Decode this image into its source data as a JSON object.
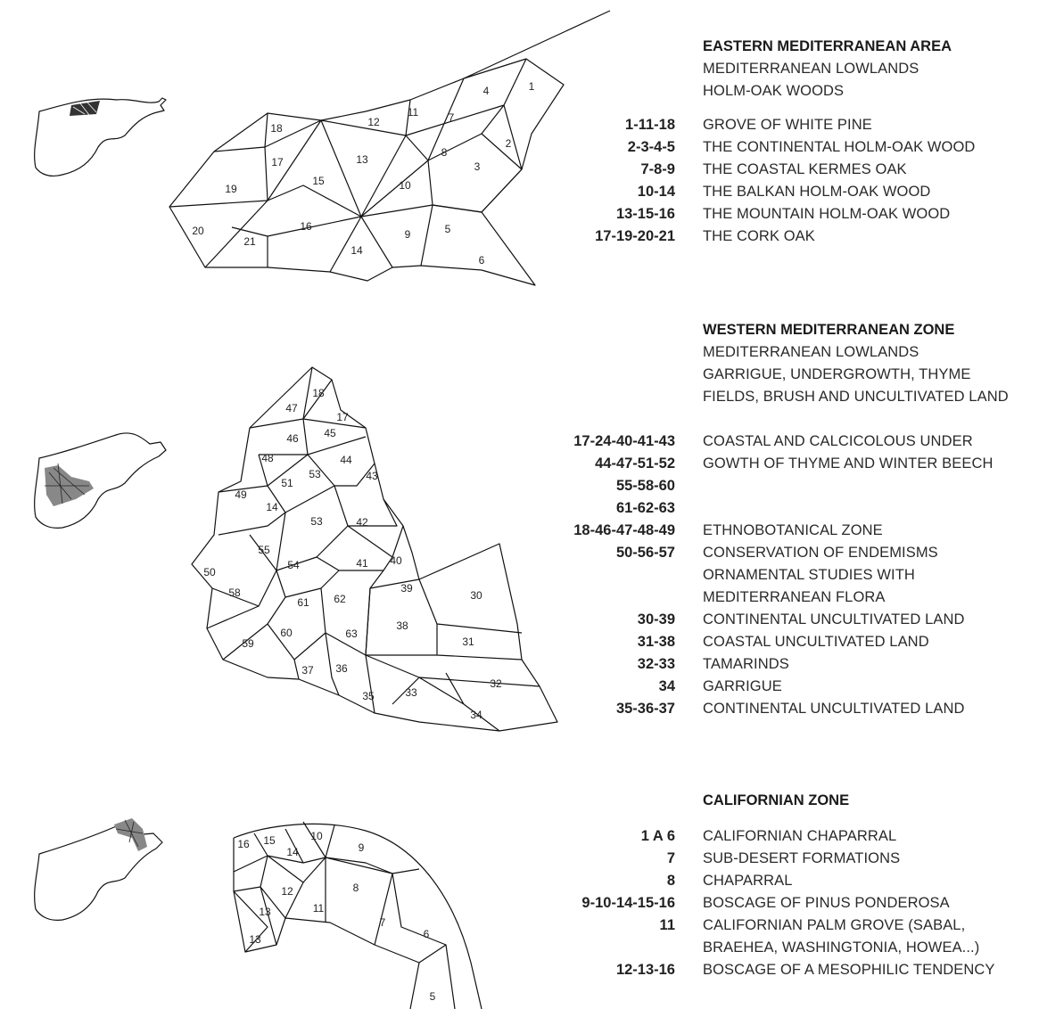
{
  "sections": [
    {
      "title": "EASTERN MEDITERRANEAN AREA",
      "subtitle": [
        "MEDITERRANEAN LOWLANDS",
        "HOLM-OAK WOODS"
      ],
      "entries": [
        {
          "code": "1-11-18",
          "text": "GROVE OF WHITE PINE"
        },
        {
          "code": "2-3-4-5",
          "text": "THE CONTINENTAL HOLM-OAK WOOD"
        },
        {
          "code": "7-8-9",
          "text": "THE COASTAL KERMES OAK"
        },
        {
          "code": "10-14",
          "text": "THE BALKAN HOLM-OAK WOOD"
        },
        {
          "code": "13-15-16",
          "text": "THE MOUNTAIN HOLM-OAK WOOD"
        },
        {
          "code": "17-19-20-21",
          "text": "THE CORK OAK"
        }
      ]
    },
    {
      "title": "WESTERN MEDITERRANEAN ZONE",
      "subtitle": [
        "MEDITERRANEAN LOWLANDS",
        "GARRIGUE, UNDERGROWTH, THYME",
        "FIELDS, BRUSH AND UNCULTIVATED LAND"
      ],
      "entries": [
        {
          "code": "17-24-40-41-43",
          "text": "COASTAL AND CALCICOLOUS UNDER"
        },
        {
          "code": "44-47-51-52",
          "text": "GOWTH OF THYME AND WINTER BEECH"
        },
        {
          "code": "55-58-60",
          "text": ""
        },
        {
          "code": "61-62-63",
          "text": ""
        },
        {
          "code": "18-46-47-48-49",
          "text": "ETHNOBOTANICAL ZONE"
        },
        {
          "code": "50-56-57",
          "text": "CONSERVATION OF ENDEMISMS"
        },
        {
          "code": "",
          "text": "ORNAMENTAL STUDIES WITH"
        },
        {
          "code": "",
          "text": "MEDITERRANEAN FLORA"
        },
        {
          "code": "30-39",
          "text": "CONTINENTAL UNCULTIVATED LAND"
        },
        {
          "code": "31-38",
          "text": "COASTAL UNCULTIVATED LAND"
        },
        {
          "code": "32-33",
          "text": "TAMARINDS"
        },
        {
          "code": "34",
          "text": "GARRIGUE"
        },
        {
          "code": "35-36-37",
          "text": "CONTINENTAL UNCULTIVATED LAND"
        }
      ]
    },
    {
      "title": "CALIFORNIAN ZONE",
      "subtitle": [],
      "entries": [
        {
          "code": "1 A 6",
          "text": "CALIFORNIAN CHAPARRAL"
        },
        {
          "code": "7",
          "text": "SUB-DESERT FORMATIONS"
        },
        {
          "code": "8",
          "text": "CHAPARRAL"
        },
        {
          "code": "9-10-14-15-16",
          "text": "BOSCAGE OF PINUS PONDEROSA"
        },
        {
          "code": "11",
          "text": "CALIFORNIAN PALM GROVE (SABAL,"
        },
        {
          "code": "",
          "text": "BRAEHEA, WASHINGTONIA, HOWEA...)"
        },
        {
          "code": "12-13-16",
          "text": "BOSCAGE OF A MESOPHILIC TENDENCY"
        }
      ]
    }
  ],
  "map_labels": {
    "eastern": [
      "1",
      "2",
      "3",
      "4",
      "5",
      "6",
      "7",
      "8",
      "9",
      "10",
      "11",
      "12",
      "13",
      "14",
      "15",
      "16",
      "17",
      "18",
      "19",
      "20",
      "21"
    ],
    "western": [
      "18",
      "47",
      "17",
      "45",
      "46",
      "44",
      "48",
      "43",
      "51",
      "53",
      "49",
      "14",
      "53",
      "42",
      "55",
      "41",
      "40",
      "54",
      "50",
      "58",
      "39",
      "30",
      "61",
      "62",
      "38",
      "63",
      "60",
      "59",
      "31",
      "37",
      "36",
      "32",
      "35",
      "33",
      "34"
    ],
    "californian": [
      "16",
      "15",
      "10",
      "9",
      "14",
      "12",
      "8",
      "11",
      "13",
      "7",
      "6",
      "13",
      "5"
    ]
  }
}
